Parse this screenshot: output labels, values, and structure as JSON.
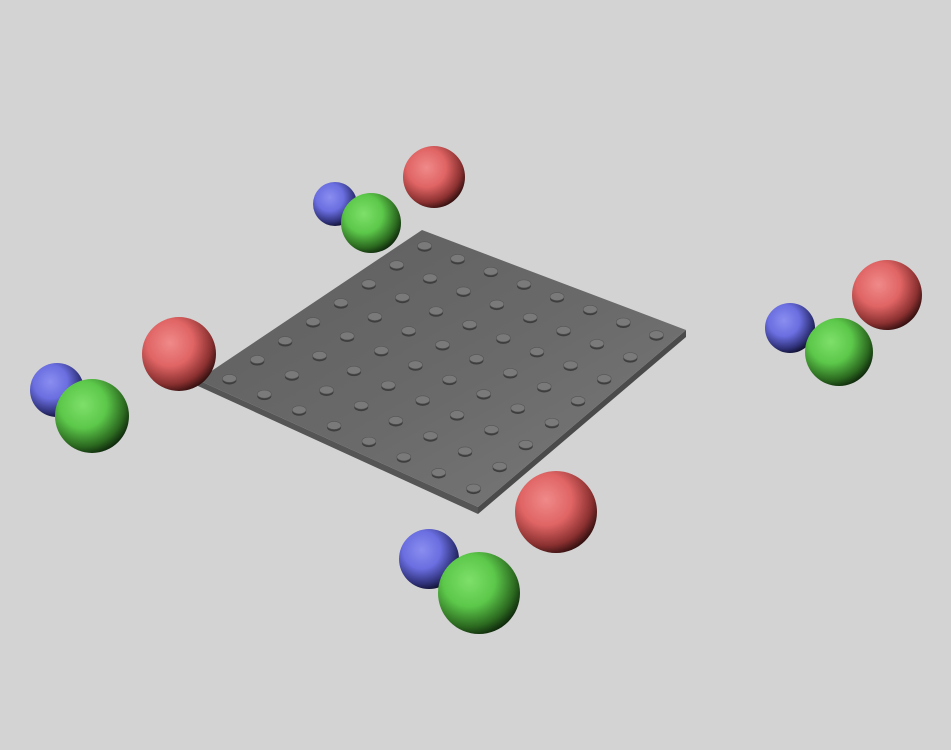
{
  "scene": {
    "background_color": "#d3d3d3",
    "plate": {
      "color": "#6a6a6a",
      "edge_color": "#4a4a4a",
      "peg_rows": 8,
      "peg_cols": 8,
      "peg_color": "#7a7a7a"
    },
    "sphere_colors": {
      "red": "#e06464",
      "green": "#5cc84a",
      "blue": "#6a6ee0"
    },
    "sphere_groups": [
      {
        "name": "top",
        "spheres": [
          "blue",
          "green",
          "red"
        ]
      },
      {
        "name": "left",
        "spheres": [
          "blue",
          "green",
          "red"
        ]
      },
      {
        "name": "right",
        "spheres": [
          "blue",
          "green",
          "red"
        ]
      },
      {
        "name": "bottom",
        "spheres": [
          "blue",
          "green",
          "red"
        ]
      }
    ]
  }
}
